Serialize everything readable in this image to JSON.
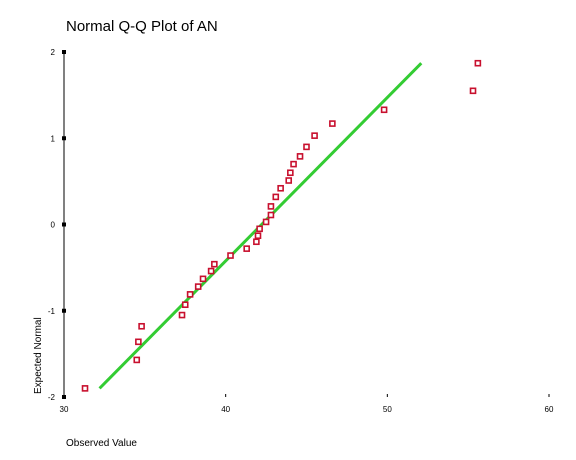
{
  "chart_data": {
    "type": "scatter",
    "title": "Normal Q-Q Plot of AN",
    "xlabel": "Observed Value",
    "ylabel": "Expected Normal",
    "xlim": [
      30,
      60
    ],
    "ylim": [
      -2,
      2
    ],
    "x_ticks": [
      "30",
      "40",
      "50",
      "60"
    ],
    "y_ticks": [
      "2",
      "1",
      "0",
      "-1",
      "-2"
    ],
    "grid": false,
    "legend": "none",
    "colors": {
      "points": "#c8102e",
      "line": "#33cc33"
    },
    "points": [
      {
        "x": 31.3,
        "y": -1.9
      },
      {
        "x": 34.5,
        "y": -1.57
      },
      {
        "x": 34.6,
        "y": -1.36
      },
      {
        "x": 34.8,
        "y": -1.18
      },
      {
        "x": 37.3,
        "y": -1.05
      },
      {
        "x": 37.5,
        "y": -0.93
      },
      {
        "x": 37.8,
        "y": -0.81
      },
      {
        "x": 38.3,
        "y": -0.72
      },
      {
        "x": 38.6,
        "y": -0.63
      },
      {
        "x": 39.1,
        "y": -0.54
      },
      {
        "x": 39.3,
        "y": -0.46
      },
      {
        "x": 40.3,
        "y": -0.36
      },
      {
        "x": 41.3,
        "y": -0.28
      },
      {
        "x": 41.9,
        "y": -0.2
      },
      {
        "x": 42.0,
        "y": -0.13
      },
      {
        "x": 42.1,
        "y": -0.05
      },
      {
        "x": 42.5,
        "y": 0.03
      },
      {
        "x": 42.8,
        "y": 0.11
      },
      {
        "x": 42.8,
        "y": 0.21
      },
      {
        "x": 43.1,
        "y": 0.32
      },
      {
        "x": 43.4,
        "y": 0.42
      },
      {
        "x": 43.9,
        "y": 0.51
      },
      {
        "x": 44.0,
        "y": 0.6
      },
      {
        "x": 44.2,
        "y": 0.7
      },
      {
        "x": 44.6,
        "y": 0.79
      },
      {
        "x": 45.0,
        "y": 0.9
      },
      {
        "x": 45.5,
        "y": 1.03
      },
      {
        "x": 46.6,
        "y": 1.17
      },
      {
        "x": 49.8,
        "y": 1.33
      },
      {
        "x": 55.3,
        "y": 1.55
      },
      {
        "x": 55.6,
        "y": 1.87
      }
    ],
    "reference_line": {
      "x": [
        32.2,
        52.1
      ],
      "y": [
        -1.9,
        1.87
      ]
    }
  }
}
